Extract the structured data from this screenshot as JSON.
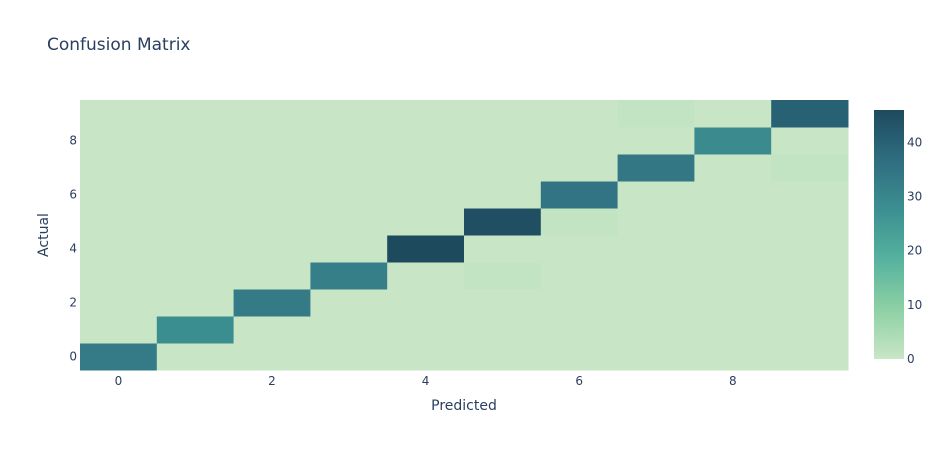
{
  "chart_data": {
    "type": "heatmap",
    "title": "Confusion Matrix",
    "xlabel": "Predicted",
    "ylabel": "Actual",
    "x": [
      0,
      1,
      2,
      3,
      4,
      5,
      6,
      7,
      8,
      9
    ],
    "y": [
      0,
      1,
      2,
      3,
      4,
      5,
      6,
      7,
      8,
      9
    ],
    "x_tick_labels": [
      "0",
      "2",
      "4",
      "6",
      "8"
    ],
    "y_tick_labels": [
      "0",
      "2",
      "4",
      "6",
      "8"
    ],
    "z": [
      [
        33,
        0,
        0,
        0,
        0,
        0,
        0,
        0,
        0,
        0
      ],
      [
        0,
        28,
        0,
        0,
        0,
        0,
        0,
        0,
        0,
        0
      ],
      [
        0,
        0,
        33,
        0,
        0,
        0,
        0,
        0,
        0,
        0
      ],
      [
        0,
        0,
        0,
        32,
        0,
        1,
        0,
        0,
        0,
        0
      ],
      [
        0,
        0,
        0,
        0,
        46,
        0,
        0,
        0,
        0,
        0
      ],
      [
        0,
        0,
        0,
        0,
        0,
        45,
        1,
        0,
        0,
        0
      ],
      [
        0,
        0,
        0,
        0,
        0,
        0,
        35,
        0,
        0,
        0
      ],
      [
        0,
        0,
        0,
        0,
        0,
        0,
        0,
        34,
        0,
        1
      ],
      [
        0,
        0,
        0,
        0,
        0,
        0,
        0,
        0,
        29,
        0
      ],
      [
        0,
        0,
        0,
        0,
        0,
        0,
        0,
        1,
        0,
        40
      ]
    ],
    "zmin": 0,
    "zmax": 46,
    "colorscale": [
      "#c8e6c6",
      "#8dd0a4",
      "#56b29e",
      "#3c8f91",
      "#2f6d80",
      "#1e4a5e"
    ],
    "colorbar_ticks": [
      0,
      10,
      20,
      30,
      40
    ],
    "grid": false
  }
}
